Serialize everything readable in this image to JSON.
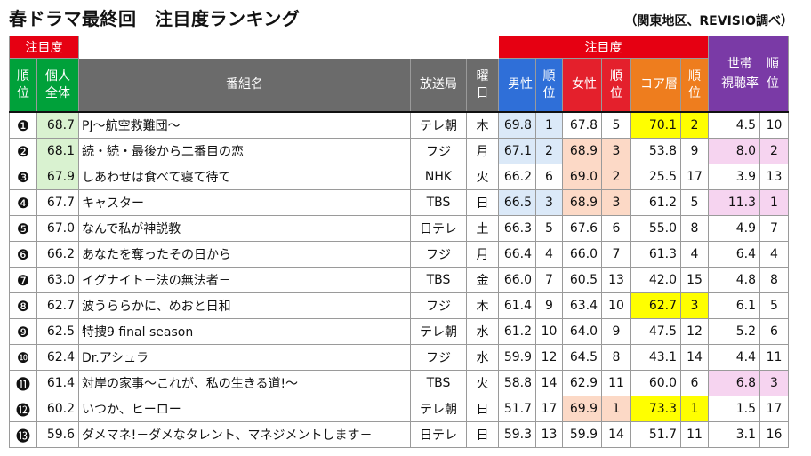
{
  "title": "春ドラマ最終回　注目度ランキング",
  "source": "（関東地区、REVISIO調べ）",
  "headers": {
    "attention_left": "注目度",
    "attention_right": "注目度",
    "rank": "順\n位",
    "overall": "個人\n全体",
    "program": "番組名",
    "station": "放送局",
    "day": "曜\n日",
    "male": "男性",
    "male_rank": "順\n位",
    "female": "女性",
    "female_rank": "順\n位",
    "core": "コア層",
    "core_rank": "順\n位",
    "household": "世帯\n視聴率",
    "household_rank": "順\n位"
  },
  "rows": [
    {
      "rank": "❶",
      "overall": "68.7",
      "title": "PJ～航空救難団～",
      "station": "テレ朝",
      "day": "木",
      "male": "69.8",
      "male_rank": "1",
      "female": "67.8",
      "female_rank": "5",
      "core": "70.1",
      "core_rank": "2",
      "household": "4.5",
      "household_rank": "10"
    },
    {
      "rank": "❷",
      "overall": "68.1",
      "title": "続・続・最後から二番目の恋",
      "station": "フジ",
      "day": "月",
      "male": "67.1",
      "male_rank": "2",
      "female": "68.9",
      "female_rank": "3",
      "core": "53.8",
      "core_rank": "9",
      "household": "8.0",
      "household_rank": "2"
    },
    {
      "rank": "❸",
      "overall": "67.9",
      "title": "しあわせは食べて寝て待て",
      "station": "NHK",
      "day": "火",
      "male": "66.2",
      "male_rank": "6",
      "female": "69.0",
      "female_rank": "2",
      "core": "25.5",
      "core_rank": "17",
      "household": "3.9",
      "household_rank": "13"
    },
    {
      "rank": "❹",
      "overall": "67.7",
      "title": "キャスター",
      "station": "TBS",
      "day": "日",
      "male": "66.5",
      "male_rank": "3",
      "female": "68.9",
      "female_rank": "3",
      "core": "61.2",
      "core_rank": "5",
      "household": "11.3",
      "household_rank": "1"
    },
    {
      "rank": "❺",
      "overall": "67.0",
      "title": "なんで私が神説教",
      "station": "日テレ",
      "day": "土",
      "male": "66.3",
      "male_rank": "5",
      "female": "67.6",
      "female_rank": "6",
      "core": "55.0",
      "core_rank": "8",
      "household": "4.9",
      "household_rank": "7"
    },
    {
      "rank": "❻",
      "overall": "66.2",
      "title": "あなたを奪ったその日から",
      "station": "フジ",
      "day": "月",
      "male": "66.4",
      "male_rank": "4",
      "female": "66.0",
      "female_rank": "7",
      "core": "61.3",
      "core_rank": "4",
      "household": "6.4",
      "household_rank": "4"
    },
    {
      "rank": "❼",
      "overall": "63.0",
      "title": "イグナイト－法の無法者－",
      "station": "TBS",
      "day": "金",
      "male": "66.0",
      "male_rank": "7",
      "female": "60.5",
      "female_rank": "13",
      "core": "42.0",
      "core_rank": "15",
      "household": "4.8",
      "household_rank": "8"
    },
    {
      "rank": "❽",
      "overall": "62.7",
      "title": "波うららかに、めおと日和",
      "station": "フジ",
      "day": "木",
      "male": "61.4",
      "male_rank": "9",
      "female": "63.4",
      "female_rank": "10",
      "core": "62.7",
      "core_rank": "3",
      "household": "6.1",
      "household_rank": "5"
    },
    {
      "rank": "❾",
      "overall": "62.5",
      "title": "特捜9 final season",
      "station": "テレ朝",
      "day": "水",
      "male": "61.2",
      "male_rank": "10",
      "female": "64.0",
      "female_rank": "9",
      "core": "47.5",
      "core_rank": "12",
      "household": "5.2",
      "household_rank": "6"
    },
    {
      "rank": "❿",
      "overall": "62.4",
      "title": "Dr.アシュラ",
      "station": "フジ",
      "day": "水",
      "male": "59.9",
      "male_rank": "12",
      "female": "64.5",
      "female_rank": "8",
      "core": "43.1",
      "core_rank": "14",
      "household": "4.4",
      "household_rank": "11"
    },
    {
      "rank": "⓫",
      "overall": "61.4",
      "title": "対岸の家事～これが、私の生きる道!～",
      "station": "TBS",
      "day": "火",
      "male": "58.8",
      "male_rank": "14",
      "female": "62.9",
      "female_rank": "11",
      "core": "60.0",
      "core_rank": "6",
      "household": "6.8",
      "household_rank": "3"
    },
    {
      "rank": "⓬",
      "overall": "60.2",
      "title": "いつか、ヒーロー",
      "station": "テレ朝",
      "day": "日",
      "male": "51.7",
      "male_rank": "17",
      "female": "69.9",
      "female_rank": "1",
      "core": "73.3",
      "core_rank": "1",
      "household": "1.5",
      "household_rank": "17"
    },
    {
      "rank": "⓭",
      "overall": "59.6",
      "title": "ダメマネ!－ダメなタレント、マネジメントします－",
      "station": "日テレ",
      "day": "日",
      "male": "59.3",
      "male_rank": "13",
      "female": "59.9",
      "female_rank": "14",
      "core": "51.7",
      "core_rank": "11",
      "household": "3.1",
      "household_rank": "16"
    }
  ],
  "colors": {
    "green_header": "#00a13a",
    "red_header": "#e60012",
    "gray_header": "#6b6b6b",
    "male_header": "#2f6fd8",
    "female_header": "#e4202c",
    "core_header": "#ee7d1e",
    "household_header": "#7a3aa6",
    "highlight_top3": "#ffff00"
  }
}
